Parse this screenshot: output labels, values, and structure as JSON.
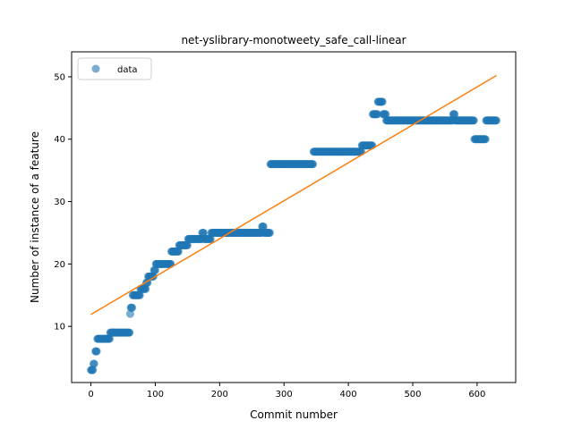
{
  "chart_data": {
    "type": "scatter",
    "title": "net-yslibrary-monotweety_safe_call-linear",
    "xlabel": "Commit number",
    "ylabel": "Number of instance of a feature",
    "xlim": [
      -30,
      660
    ],
    "ylim": [
      1,
      54
    ],
    "xticks": [
      0,
      100,
      200,
      300,
      400,
      500,
      600
    ],
    "yticks": [
      10,
      20,
      30,
      40,
      50
    ],
    "grid": false,
    "legend": {
      "placement": "upper-left",
      "entries": [
        "data"
      ]
    },
    "colors": {
      "data": "#1f77b4",
      "fit": "#ff7f0e"
    },
    "series": [
      {
        "name": "data",
        "kind": "scatter",
        "segments": [
          [
            0,
            3,
            3,
            1
          ],
          [
            4,
            4,
            5,
            1
          ],
          [
            7,
            6,
            9,
            1
          ],
          [
            10,
            8,
            29,
            1
          ],
          [
            30,
            9,
            60,
            1
          ],
          [
            61,
            12,
            61,
            1
          ],
          [
            62,
            13,
            64,
            1
          ],
          [
            65,
            15,
            76,
            1
          ],
          [
            77,
            16,
            85,
            1
          ],
          [
            86,
            17,
            88,
            1
          ],
          [
            89,
            18,
            97,
            1
          ],
          [
            98,
            19,
            100,
            1
          ],
          [
            101,
            20,
            124,
            1
          ],
          [
            125,
            22,
            136,
            1
          ],
          [
            137,
            23,
            150,
            1
          ],
          [
            151,
            24,
            172,
            1
          ],
          [
            173,
            25,
            175,
            1
          ],
          [
            176,
            24,
            186,
            1
          ],
          [
            187,
            25,
            265,
            1
          ],
          [
            266,
            26,
            268,
            1
          ],
          [
            269,
            25,
            278,
            1
          ],
          [
            279,
            36,
            345,
            1
          ],
          [
            346,
            38,
            420,
            1
          ],
          [
            421,
            39,
            437,
            1
          ],
          [
            438,
            44,
            445,
            1
          ],
          [
            446,
            46,
            453,
            1
          ],
          [
            454,
            44,
            458,
            1
          ],
          [
            459,
            43,
            562,
            1
          ],
          [
            563,
            44,
            565,
            1
          ],
          [
            566,
            43,
            595,
            1
          ],
          [
            596,
            40,
            613,
            1
          ],
          [
            614,
            43,
            630,
            1
          ]
        ]
      },
      {
        "name": "",
        "kind": "line",
        "x": [
          0,
          630
        ],
        "y": [
          11.9,
          50.2
        ]
      }
    ]
  }
}
